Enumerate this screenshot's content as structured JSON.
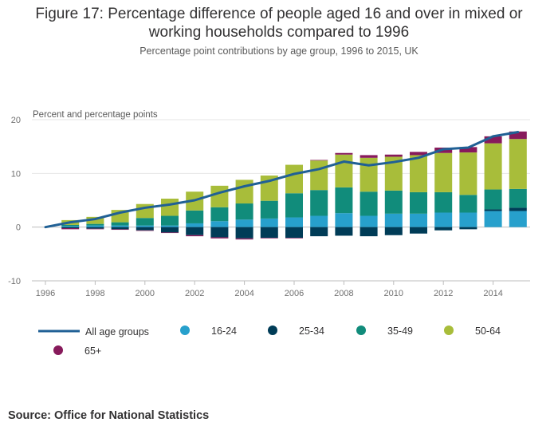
{
  "title_line1": "Figure 17: Percentage difference of people aged 16 and over in mixed or",
  "title_line2": "working households compared to 1996",
  "subtitle": "Percentage point contributions by age group, 1996 to 2015, UK",
  "source": "Source: Office for National Statistics",
  "chart_data": {
    "type": "bar",
    "stacked": true,
    "ylabel": "Percent and percentage points",
    "ylim": [
      -10,
      20
    ],
    "yticks": [
      -10,
      0,
      10,
      20
    ],
    "xticks": [
      "1996",
      "1998",
      "2000",
      "2002",
      "2004",
      "2006",
      "2008",
      "2010",
      "2012",
      "2014"
    ],
    "categories": [
      "1997",
      "1998",
      "1999",
      "2000",
      "2001",
      "2002",
      "2003",
      "2004",
      "2005",
      "2006",
      "2007",
      "2008",
      "2009",
      "2010",
      "2011",
      "2012",
      "2013",
      "2014",
      "2015"
    ],
    "series": [
      {
        "name": "16-24",
        "color": "#27a0cc",
        "values": [
          0.2,
          0.3,
          0.3,
          0.3,
          0.3,
          0.7,
          1.1,
          1.4,
          1.6,
          1.8,
          2.1,
          2.6,
          2.1,
          2.5,
          2.5,
          2.7,
          2.7,
          3.0,
          3.0
        ]
      },
      {
        "name": "25-34",
        "color": "#003c57",
        "values": [
          -0.2,
          -0.3,
          -0.4,
          -0.6,
          -1.0,
          -1.5,
          -1.9,
          -2.1,
          -2.0,
          -2.0,
          -1.7,
          -1.6,
          -1.7,
          -1.5,
          -1.2,
          -0.6,
          -0.4,
          0.3,
          0.6
        ]
      },
      {
        "name": "35-49",
        "color": "#118c7b",
        "values": [
          0.2,
          0.3,
          0.6,
          1.4,
          1.8,
          2.4,
          2.6,
          3.0,
          3.3,
          4.5,
          4.8,
          4.8,
          4.5,
          4.3,
          4.0,
          3.8,
          3.3,
          3.7,
          3.5
        ]
      },
      {
        "name": "50-64",
        "color": "#a8bd3a",
        "values": [
          0.9,
          1.3,
          2.3,
          2.6,
          3.2,
          3.5,
          4.0,
          4.4,
          4.7,
          5.3,
          5.5,
          6.1,
          6.3,
          6.3,
          6.9,
          7.3,
          7.9,
          8.6,
          9.3
        ]
      },
      {
        "name": "65+",
        "color": "#871a5b",
        "values": [
          -0.2,
          -0.1,
          -0.1,
          -0.1,
          -0.1,
          -0.2,
          -0.2,
          -0.2,
          -0.1,
          -0.1,
          0.1,
          0.3,
          0.5,
          0.4,
          0.6,
          1.0,
          1.0,
          1.3,
          1.4
        ]
      }
    ],
    "line": {
      "name": "All age groups",
      "color": "#206095",
      "x": [
        "1996",
        "1997",
        "1998",
        "1999",
        "2000",
        "2001",
        "2002",
        "2003",
        "2004",
        "2005",
        "2006",
        "2007",
        "2008",
        "2009",
        "2010",
        "2011",
        "2012",
        "2013",
        "2014",
        "2015"
      ],
      "values": [
        0,
        0.9,
        1.5,
        2.7,
        3.6,
        4.2,
        5.0,
        6.4,
        7.6,
        8.6,
        9.9,
        10.8,
        12.2,
        11.5,
        12.1,
        12.9,
        14.5,
        14.8,
        16.9,
        17.7
      ]
    },
    "legend": [
      "All age groups",
      "16-24",
      "25-34",
      "35-49",
      "50-64",
      "65+"
    ],
    "legend_position": "bottom",
    "grid": true
  }
}
